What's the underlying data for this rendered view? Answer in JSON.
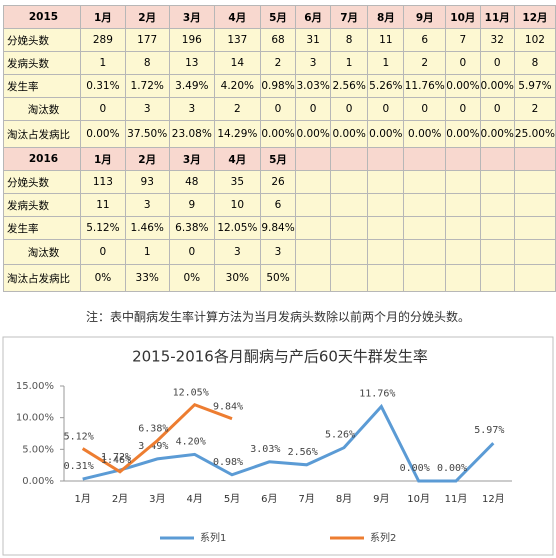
{
  "table": {
    "rows": [
      [
        "2015",
        "1月",
        "2月",
        "3月",
        "4月",
        "5月",
        "6月",
        "7月",
        "8月",
        "9月",
        "10月",
        "11月",
        "12月"
      ],
      [
        "分娩头数",
        "289",
        "177",
        "196",
        "137",
        "68",
        "31",
        "8",
        "11",
        "6",
        "7",
        "32",
        "102"
      ],
      [
        "发病头数",
        "1",
        "8",
        "13",
        "14",
        "2",
        "3",
        "1",
        "1",
        "2",
        "0",
        "0",
        "8"
      ],
      [
        "发生率",
        "0.31%",
        "1.72%",
        "3.49%",
        "4.20%",
        "0.98%",
        "3.03%",
        "2.56%",
        "5.26%",
        "11.76%",
        "0.00%",
        "0.00%",
        "5.97%"
      ],
      [
        "淘汰数",
        "0",
        "3",
        "3",
        "2",
        "0",
        "0",
        "0",
        "0",
        "0",
        "0",
        "0",
        "2"
      ],
      [
        "淘汰占发病比",
        "0.00%",
        "37.50%",
        "23.08%",
        "14.29%",
        "0.00%",
        "0.00%",
        "0.00%",
        "0.00%",
        "0.00%",
        "0.00%",
        "0.00%",
        "25.00%"
      ],
      [
        "2016",
        "1月",
        "2月",
        "3月",
        "4月",
        "5月"
      ],
      [
        "分娩头数",
        "113",
        "93",
        "48",
        "35",
        "26"
      ],
      [
        "发病头数",
        "11",
        "3",
        "9",
        "10",
        "6"
      ],
      [
        "发生率",
        "5.12%",
        "1.46%",
        "6.38%",
        "12.05%",
        "9.84%"
      ],
      [
        "淘汰数",
        "0",
        "1",
        "0",
        "3",
        "3"
      ],
      [
        "淘汰占发病比",
        "0%",
        "33%",
        "0%",
        "30%",
        "50%"
      ]
    ]
  },
  "note": "注：表中酮病发生率计算方法为当月发病头数除以前两个月的分娩头数。",
  "chart_data": {
    "type": "line",
    "title": "2015-2016各月酮病与产后60天牛群发生率",
    "categories": [
      "1月",
      "2月",
      "3月",
      "4月",
      "5月",
      "6月",
      "7月",
      "8月",
      "9月",
      "10月",
      "11月",
      "12月"
    ],
    "series": [
      {
        "name": "系列1",
        "color": "#5b9bd5",
        "values": [
          0.31,
          1.72,
          3.49,
          4.2,
          0.98,
          3.03,
          2.56,
          5.26,
          11.76,
          0,
          0,
          5.97
        ],
        "value_labels": [
          "0.31%",
          "1.72%",
          "3.49%",
          "4.20%",
          "0.98%",
          "3.03%",
          "2.56%",
          "5.26%",
          "11.76%",
          "0.00%",
          "0.00%",
          "5.97%"
        ]
      },
      {
        "name": "系列2",
        "color": "#ed7d31",
        "values": [
          5.12,
          1.46,
          6.38,
          12.05,
          9.84,
          null,
          null,
          null,
          null,
          null,
          null,
          null
        ],
        "value_labels": [
          "5.12%",
          "1.46%",
          "6.38%",
          "12.05%",
          "9.84%",
          null,
          null,
          null,
          null,
          null,
          null,
          null
        ]
      }
    ],
    "ylim": [
      0,
      15
    ],
    "yticks": [
      {
        "value": 0,
        "label": "0.00%"
      },
      {
        "value": 5,
        "label": "5.00%"
      },
      {
        "value": 10,
        "label": "10.00%"
      },
      {
        "value": 15,
        "label": "15.00%"
      }
    ],
    "legend": "bottom"
  }
}
